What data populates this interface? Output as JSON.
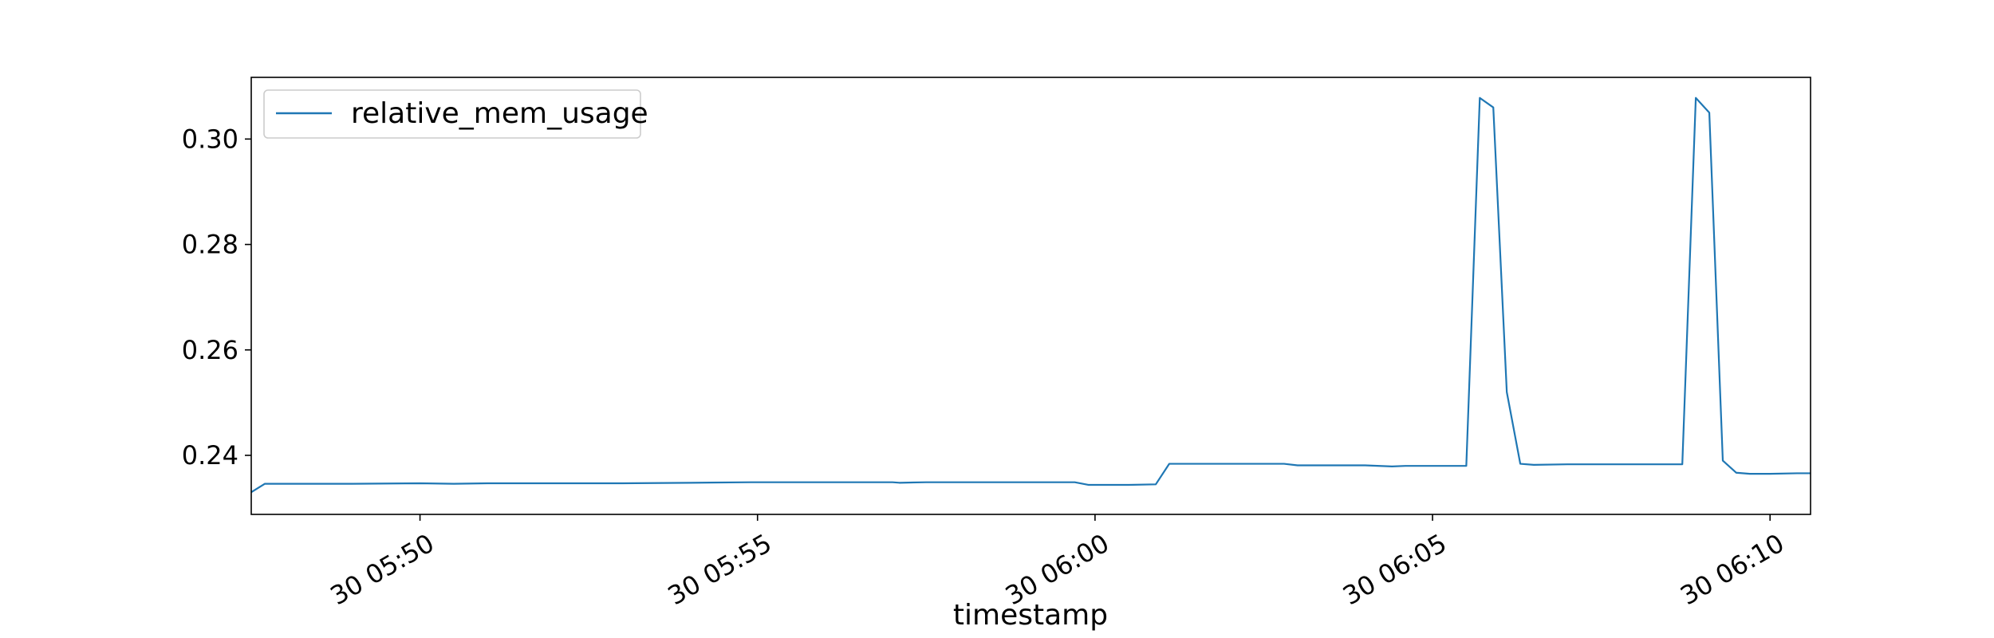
{
  "chart_data": {
    "type": "line",
    "title": "",
    "xlabel": "timestamp",
    "ylabel": "",
    "x_unit": "minutes",
    "xlim": [
      "30 05:47:30",
      "30 06:10:36"
    ],
    "ylim": [
      0.2288,
      0.3117
    ],
    "x_ticks": [
      "30 05:50",
      "30 05:55",
      "30 06:00",
      "30 06:05",
      "30 06:10"
    ],
    "y_ticks": [
      "0.24",
      "0.26",
      "0.28",
      "0.30"
    ],
    "legend": {
      "position": "top-left",
      "entries": [
        "relative_mem_usage"
      ]
    },
    "grid": false,
    "colors": {
      "line": "#1f77b4"
    },
    "series": [
      {
        "name": "relative_mem_usage",
        "x": [
          "30 05:47:30",
          "30 05:47:42",
          "30 05:48:00",
          "30 05:49:00",
          "30 05:50:00",
          "30 05:50:30",
          "30 05:51:00",
          "30 05:52:00",
          "30 05:53:00",
          "30 05:54:00",
          "30 05:54:54",
          "30 05:55:00",
          "30 05:56:00",
          "30 05:57:00",
          "30 05:57:06",
          "30 05:57:30",
          "30 05:58:00",
          "30 05:59:00",
          "30 05:59:42",
          "30 05:59:54",
          "30 06:00:00",
          "30 06:00:30",
          "30 06:00:54",
          "30 06:01:06",
          "30 06:02:00",
          "30 06:02:48",
          "30 06:03:00",
          "30 06:04:00",
          "30 06:04:24",
          "30 06:04:36",
          "30 06:05:00",
          "30 06:05:30",
          "30 06:05:42",
          "30 06:05:54",
          "30 06:06:06",
          "30 06:06:18",
          "30 06:06:30",
          "30 06:07:00",
          "30 06:08:00",
          "30 06:08:42",
          "30 06:08:54",
          "30 06:09:06",
          "30 06:09:18",
          "30 06:09:30",
          "30 06:09:42",
          "30 06:10:00",
          "30 06:10:24",
          "30 06:10:36"
        ],
        "values": [
          0.233,
          0.2346,
          0.2346,
          0.2346,
          0.2347,
          0.2346,
          0.2347,
          0.2347,
          0.2347,
          0.2348,
          0.2349,
          0.2349,
          0.2349,
          0.2349,
          0.2348,
          0.2349,
          0.2349,
          0.2349,
          0.2349,
          0.2344,
          0.2344,
          0.2344,
          0.2345,
          0.2384,
          0.2384,
          0.2384,
          0.2381,
          0.2381,
          0.2379,
          0.238,
          0.238,
          0.238,
          0.3078,
          0.306,
          0.252,
          0.2384,
          0.2382,
          0.2383,
          0.2383,
          0.2383,
          0.3078,
          0.305,
          0.239,
          0.2367,
          0.2365,
          0.2365,
          0.2366,
          0.2366
        ]
      }
    ]
  }
}
